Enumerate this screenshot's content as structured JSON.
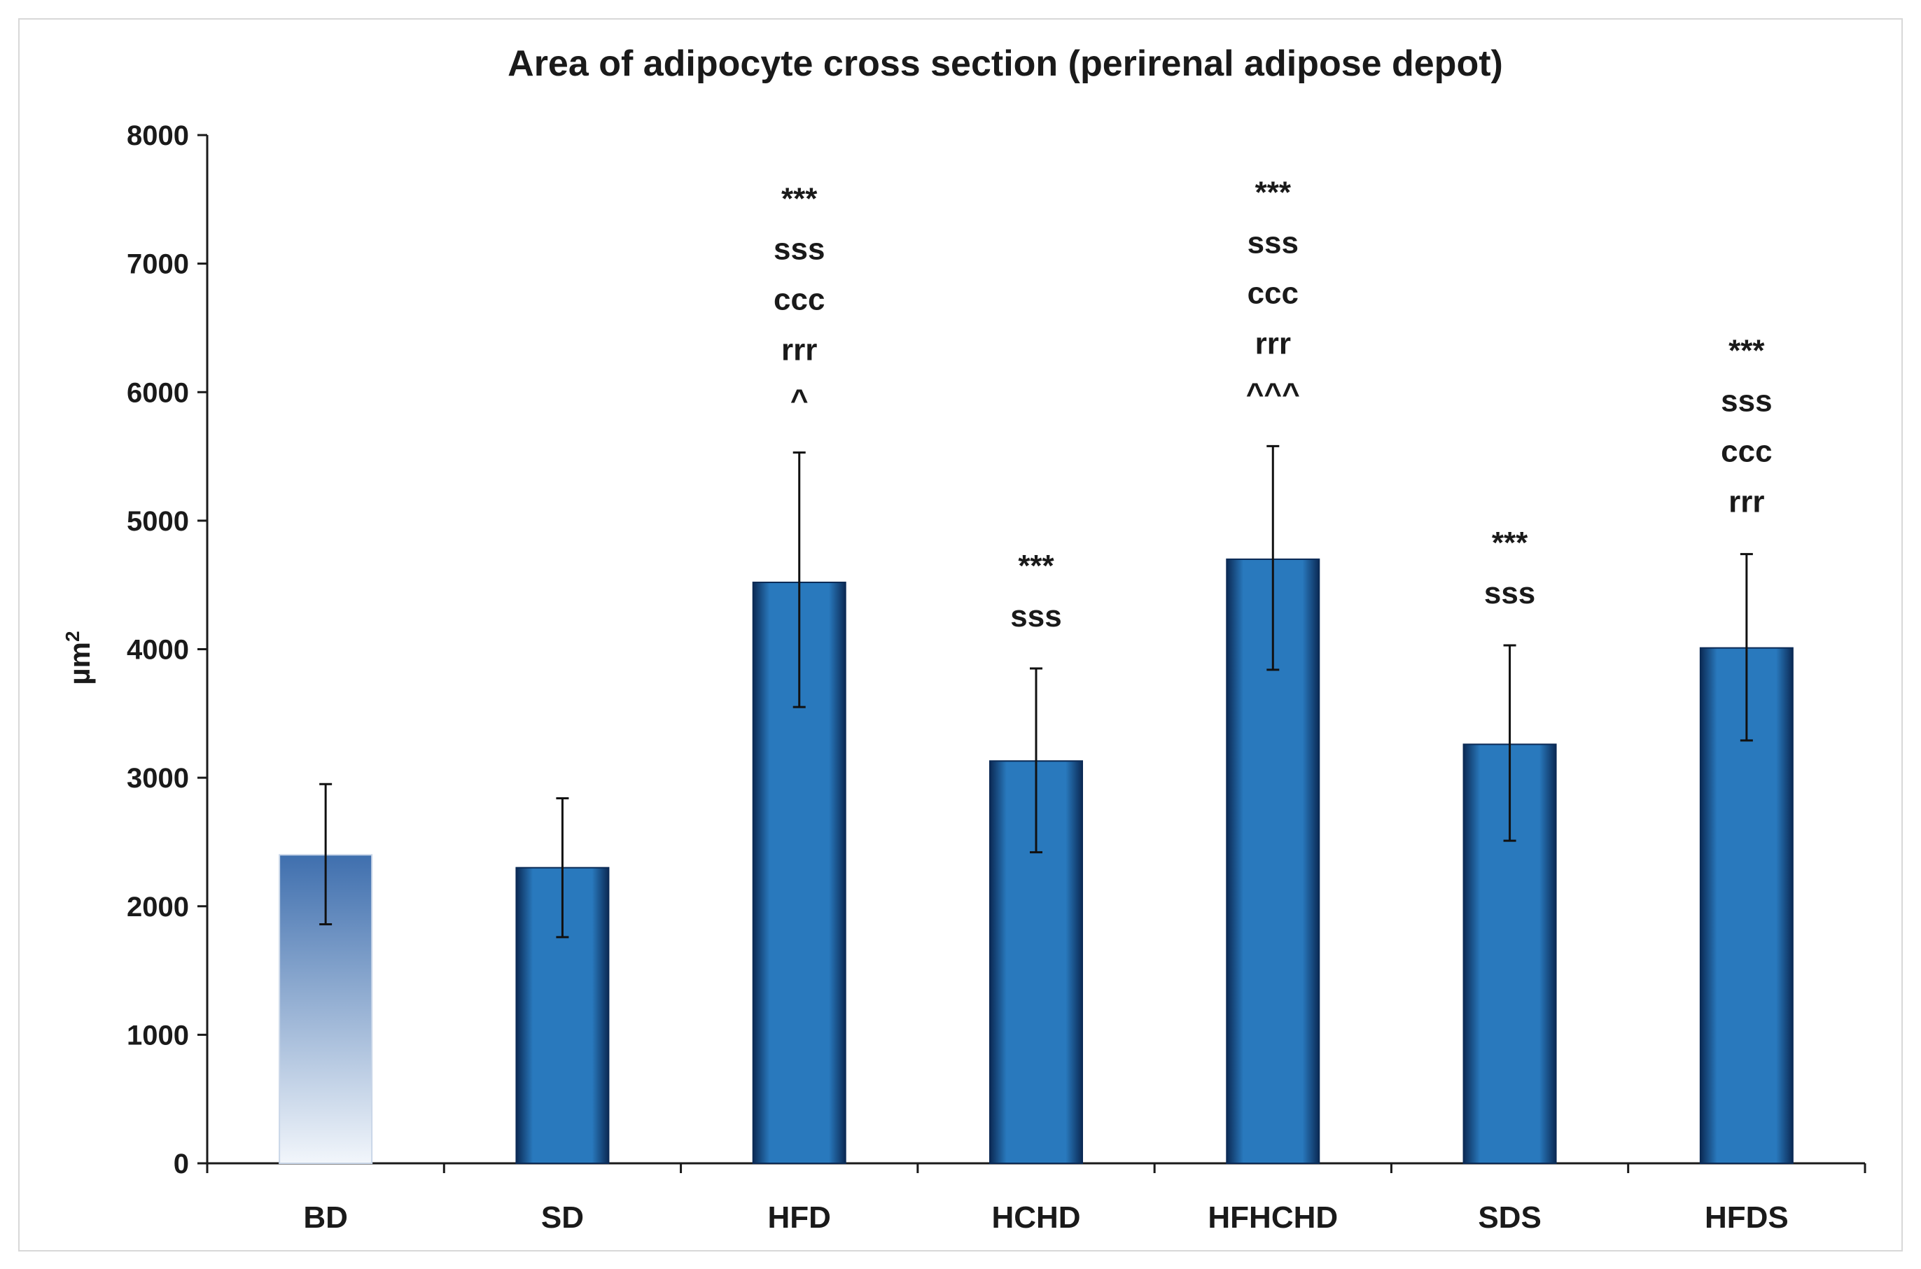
{
  "chart_data": {
    "type": "bar",
    "title": "Area of adipocyte cross section (perirenal adipose depot)",
    "xlabel": "",
    "ylabel": "µm",
    "ylabel_superscript": "2",
    "ylim": [
      0,
      8000
    ],
    "yticks": [
      "0",
      "1000",
      "2000",
      "3000",
      "4000",
      "5000",
      "6000",
      "7000",
      "8000"
    ],
    "categories": [
      "BD",
      "SD",
      "HFD",
      "HCHD",
      "HFHCHD",
      "SDS",
      "HFDS"
    ],
    "values": [
      2400,
      2300,
      4520,
      3130,
      4700,
      3260,
      4010
    ],
    "error_low": [
      1860,
      1760,
      3550,
      2420,
      3840,
      2510,
      3290
    ],
    "error_high": [
      2950,
      2840,
      5530,
      3850,
      5580,
      4030,
      4740
    ],
    "significance": [
      [],
      [],
      [
        "***",
        "sss",
        "ccc",
        "rrr",
        "^"
      ],
      [
        "***",
        "sss"
      ],
      [
        "***",
        "sss",
        "ccc",
        "rrr",
        "^^^"
      ],
      [
        "***",
        "sss"
      ],
      [
        "***",
        "sss",
        "ccc",
        "rrr"
      ]
    ],
    "bar_styles": [
      "light",
      "dark",
      "dark",
      "dark",
      "dark",
      "dark",
      "dark"
    ],
    "grid": false,
    "legend": "none"
  },
  "colors": {
    "bar_dark_edge": "#0b2a55",
    "bar_dark_center": "#2979bd",
    "bar_light_top": "#3f6fae",
    "bar_light_bottom": "#f2f6fb",
    "axis": "#1a1a1a",
    "text": "#1a1a1a"
  }
}
